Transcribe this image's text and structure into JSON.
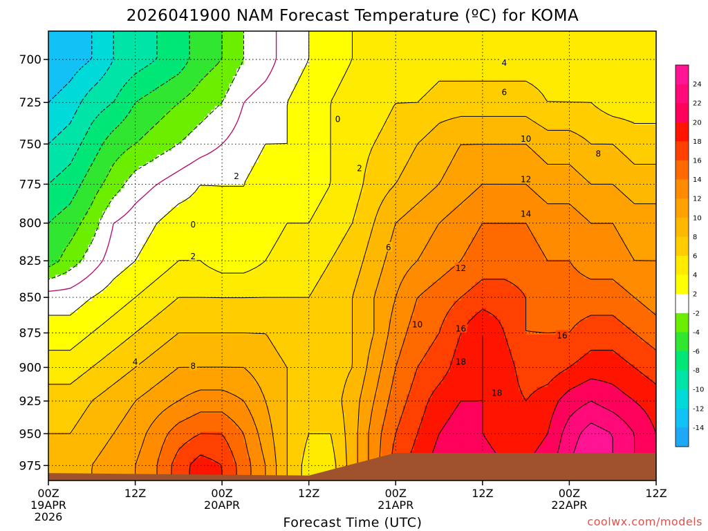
{
  "chart_data": {
    "type": "heatmap",
    "title": "2026041900 NAM Forecast Temperature (ºC) for KOMA",
    "xlabel": "Forecast Time (UTC)",
    "ylabel": "",
    "x_hours": [
      0,
      3,
      6,
      9,
      12,
      15,
      18,
      21,
      24,
      27,
      30,
      33,
      36,
      39,
      42,
      45,
      48,
      51,
      54,
      57,
      60,
      63,
      66,
      69,
      72,
      75,
      78,
      81,
      84
    ],
    "xlim": [
      0,
      84
    ],
    "x_ticks": [
      {
        "hour": 0,
        "label": "00Z",
        "date": "19APR",
        "year": "2026"
      },
      {
        "hour": 12,
        "label": "12Z",
        "date": "",
        "year": ""
      },
      {
        "hour": 24,
        "label": "00Z",
        "date": "20APR",
        "year": ""
      },
      {
        "hour": 36,
        "label": "12Z",
        "date": "",
        "year": ""
      },
      {
        "hour": 48,
        "label": "00Z",
        "date": "21APR",
        "year": ""
      },
      {
        "hour": 60,
        "label": "12Z",
        "date": "",
        "year": ""
      },
      {
        "hour": 72,
        "label": "00Z",
        "date": "22APR",
        "year": ""
      },
      {
        "hour": 84,
        "label": "12Z",
        "date": "",
        "year": ""
      }
    ],
    "y_levels": [
      975,
      950,
      925,
      900,
      875,
      850,
      825,
      800,
      775,
      750,
      725,
      700
    ],
    "ylim": [
      987,
      684
    ],
    "y_scale": "log-pressure",
    "grid": true,
    "temperature_c": [
      [
        9,
        9,
        10,
        11,
        12,
        14,
        17,
        19,
        18,
        15,
        12,
        8,
        5,
        5,
        9,
        13,
        17,
        19,
        21,
        22,
        21,
        20,
        20,
        21,
        24,
        26,
        24,
        22,
        20
      ],
      [
        8,
        8,
        9,
        10,
        11,
        13,
        15,
        16,
        16,
        14,
        11,
        8,
        6,
        6,
        9,
        13,
        16,
        18,
        20,
        21,
        20,
        19,
        19,
        20,
        23,
        25,
        24,
        22,
        20
      ],
      [
        7,
        7,
        8,
        9,
        10,
        11,
        12,
        13,
        13,
        12,
        10,
        8,
        7,
        7,
        9,
        12,
        15,
        17,
        19,
        20,
        20,
        19,
        18,
        19,
        21,
        22,
        21,
        20,
        19
      ],
      [
        5,
        5,
        6,
        7,
        8,
        9,
        10,
        10,
        10,
        10,
        9,
        8,
        7,
        7,
        8,
        11,
        14,
        16,
        17,
        19,
        20,
        19,
        17,
        17,
        18,
        19,
        19,
        18,
        17
      ],
      [
        3,
        3,
        4,
        5,
        6,
        7,
        8,
        8,
        8,
        8,
        8,
        7,
        7,
        7,
        8,
        10,
        13,
        15,
        16,
        18,
        20,
        18,
        16,
        16,
        16,
        17,
        17,
        16,
        15
      ],
      [
        1,
        1,
        2,
        3,
        4,
        5,
        6,
        6,
        6,
        6,
        6,
        6,
        6,
        7,
        8,
        10,
        12,
        14,
        15,
        16,
        17,
        17,
        16,
        15,
        15,
        15,
        15,
        14,
        13
      ],
      [
        -5,
        -3,
        -1,
        1,
        2,
        3,
        4,
        4,
        3,
        3,
        4,
        5,
        5,
        6,
        7,
        9,
        11,
        12,
        13,
        14,
        15,
        15,
        15,
        14,
        14,
        13,
        13,
        12,
        12
      ],
      [
        -6,
        -5,
        -3,
        0,
        1,
        2,
        3,
        3,
        2,
        2,
        3,
        4,
        4,
        5,
        6,
        8,
        10,
        11,
        12,
        13,
        14,
        14,
        14,
        13,
        13,
        12,
        12,
        11,
        11
      ],
      [
        -8,
        -7,
        -5,
        -3,
        -1,
        0,
        1,
        2,
        2,
        2,
        3,
        3,
        3,
        4,
        5,
        7,
        8,
        9,
        10,
        11,
        12,
        12,
        12,
        11,
        11,
        10,
        10,
        9,
        9
      ],
      [
        -10,
        -9,
        -7,
        -5,
        -4,
        -3,
        -2,
        -1,
        0,
        1,
        2,
        2,
        3,
        4,
        5,
        6,
        7,
        8,
        9,
        10,
        10,
        10,
        10,
        9,
        9,
        8,
        8,
        7,
        7
      ],
      [
        -12,
        -11,
        -9,
        -8,
        -6,
        -5,
        -4,
        -3,
        -2,
        0,
        1,
        2,
        3,
        4,
        5,
        5,
        6,
        6,
        7,
        7,
        7,
        7,
        7,
        6,
        6,
        6,
        5,
        5,
        5
      ],
      [
        -14,
        -13,
        -12,
        -10,
        -9,
        -8,
        -7,
        -5,
        -4,
        -2,
        -1,
        1,
        2,
        3,
        4,
        4,
        4,
        4,
        5,
        5,
        5,
        5,
        5,
        5,
        4,
        4,
        4,
        4,
        4
      ]
    ],
    "contour_levels": [
      -14,
      -12,
      -10,
      -8,
      -6,
      -4,
      -2,
      0,
      2,
      4,
      6,
      8,
      10,
      12,
      14,
      16,
      18,
      20,
      22,
      24
    ],
    "contour_labels": [
      {
        "text": "0",
        "hour": 40,
        "level": 735
      },
      {
        "text": "0",
        "hour": 20,
        "level": 801
      },
      {
        "text": "2",
        "hour": 26,
        "level": 770
      },
      {
        "text": "2",
        "hour": 43,
        "level": 765
      },
      {
        "text": "2",
        "hour": 20,
        "level": 822
      },
      {
        "text": "4",
        "hour": 63,
        "level": 702
      },
      {
        "text": "4",
        "hour": 12,
        "level": 896
      },
      {
        "text": "6",
        "hour": 63,
        "level": 719
      },
      {
        "text": "6",
        "hour": 47,
        "level": 816
      },
      {
        "text": "8",
        "hour": 76,
        "level": 756
      },
      {
        "text": "8",
        "hour": 20,
        "level": 899
      },
      {
        "text": "10",
        "hour": 66,
        "level": 747
      },
      {
        "text": "10",
        "hour": 51,
        "level": 869
      },
      {
        "text": "12",
        "hour": 66,
        "level": 772
      },
      {
        "text": "12",
        "hour": 57,
        "level": 830
      },
      {
        "text": "14",
        "hour": 66,
        "level": 794
      },
      {
        "text": "16",
        "hour": 57,
        "level": 872
      },
      {
        "text": "16",
        "hour": 71,
        "level": 877
      },
      {
        "text": "18",
        "hour": 57,
        "level": 896
      },
      {
        "text": "18",
        "hour": 62,
        "level": 919
      }
    ],
    "terrain_surface": {
      "hour": [
        0,
        36,
        48,
        84
      ],
      "level": [
        981,
        983,
        965,
        965
      ]
    },
    "colorbar": {
      "bins": [
        {
          "from": -16,
          "to": -14,
          "color": "#1fa8f5"
        },
        {
          "from": -14,
          "to": -12,
          "color": "#12c1f5"
        },
        {
          "from": -12,
          "to": -10,
          "color": "#00dbda"
        },
        {
          "from": -10,
          "to": -8,
          "color": "#00e4a8"
        },
        {
          "from": -8,
          "to": -6,
          "color": "#00e677"
        },
        {
          "from": -6,
          "to": -4,
          "color": "#30e630"
        },
        {
          "from": -4,
          "to": -2,
          "color": "#6cee00"
        },
        {
          "from": -2,
          "to": 2,
          "color": "#ffffff"
        },
        {
          "from": 2,
          "to": 4,
          "color": "#ffff00"
        },
        {
          "from": 4,
          "to": 6,
          "color": "#ffeb00"
        },
        {
          "from": 6,
          "to": 8,
          "color": "#ffcd00"
        },
        {
          "from": 8,
          "to": 10,
          "color": "#ffb800"
        },
        {
          "from": 10,
          "to": 12,
          "color": "#ffa200"
        },
        {
          "from": 12,
          "to": 14,
          "color": "#ff8c00"
        },
        {
          "from": 14,
          "to": 16,
          "color": "#ff6a00"
        },
        {
          "from": 16,
          "to": 18,
          "color": "#ff4000"
        },
        {
          "from": 18,
          "to": 20,
          "color": "#ff1400"
        },
        {
          "from": 20,
          "to": 22,
          "color": "#ff005a"
        },
        {
          "from": 22,
          "to": 24,
          "color": "#ff0a78"
        },
        {
          "from": 24,
          "to": 26,
          "color": "#ff1494"
        }
      ],
      "labels": [
        "24",
        "22",
        "20",
        "18",
        "16",
        "14",
        "12",
        "10",
        "8",
        "6",
        "4",
        "2",
        "-2",
        "-4",
        "-6",
        "-8",
        "-10",
        "-12",
        "-14"
      ]
    }
  },
  "colors": {
    "terrain": "#a0522d",
    "positive_contour": "#000000",
    "zero_contour": "#b4146e",
    "credit": "#e0504a"
  },
  "credit": "coolwx.com/models"
}
